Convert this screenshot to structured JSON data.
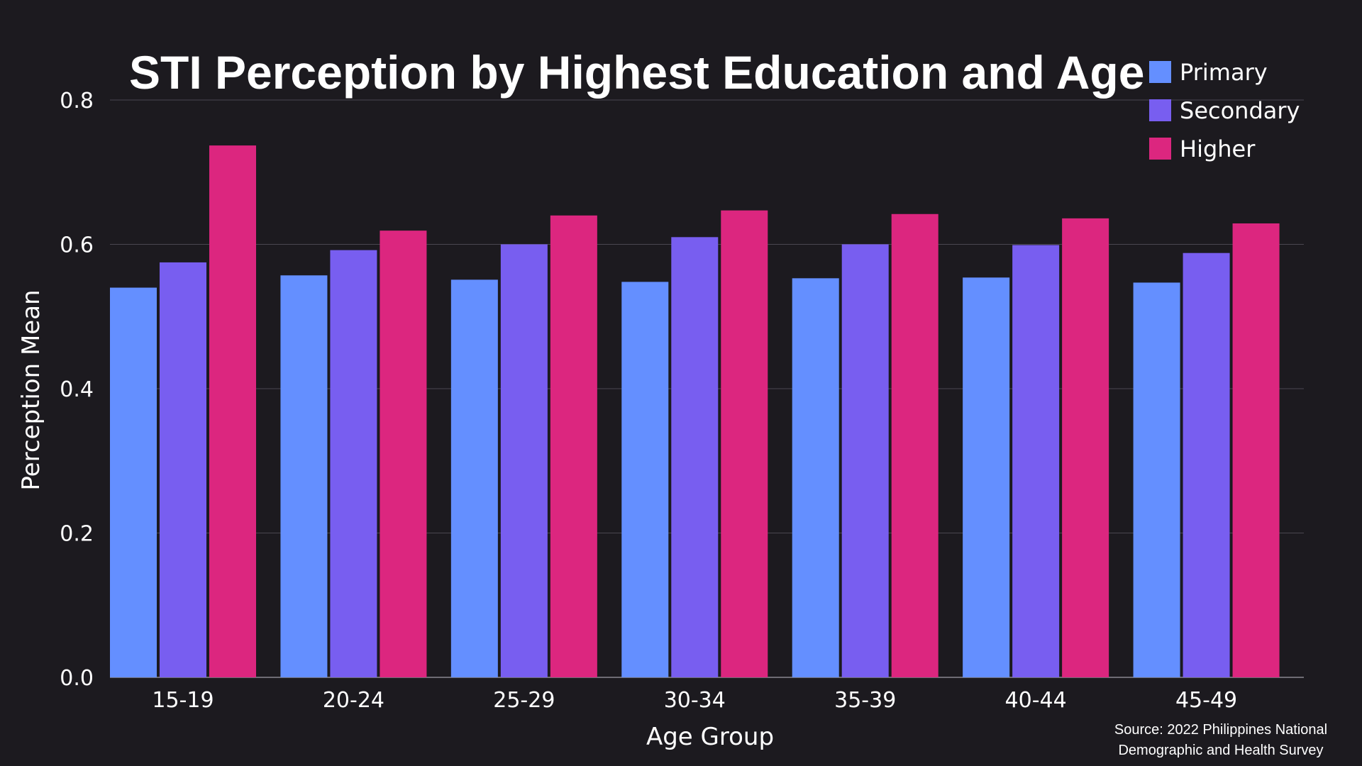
{
  "chart_data": {
    "type": "bar",
    "title": "STI Perception by Highest Education and Age",
    "xlabel": "Age Group",
    "ylabel": "Perception Mean",
    "categories": [
      "15-19",
      "20-24",
      "25-29",
      "30-34",
      "35-39",
      "40-44",
      "45-49"
    ],
    "series": [
      {
        "name": "Primary",
        "color": "#648fff",
        "values": [
          0.54,
          0.557,
          0.551,
          0.548,
          0.553,
          0.554,
          0.547
        ]
      },
      {
        "name": "Secondary",
        "color": "#785ef0",
        "values": [
          0.575,
          0.592,
          0.6,
          0.61,
          0.6,
          0.599,
          0.588
        ]
      },
      {
        "name": "Higher",
        "color": "#dc267f",
        "values": [
          0.737,
          0.619,
          0.64,
          0.647,
          0.642,
          0.636,
          0.629
        ]
      }
    ],
    "ylim": [
      0,
      0.8
    ],
    "yticks": [
      "0.0",
      "0.2",
      "0.4",
      "0.6",
      "0.8"
    ],
    "grid": true,
    "legend_position": "top-right",
    "source_lines": [
      "Source: 2022 Philippines National",
      "Demographic and Health Survey"
    ]
  },
  "colors": {
    "background": "#1c1a1f",
    "grid": "#4a4750",
    "text": "#ffffff"
  }
}
